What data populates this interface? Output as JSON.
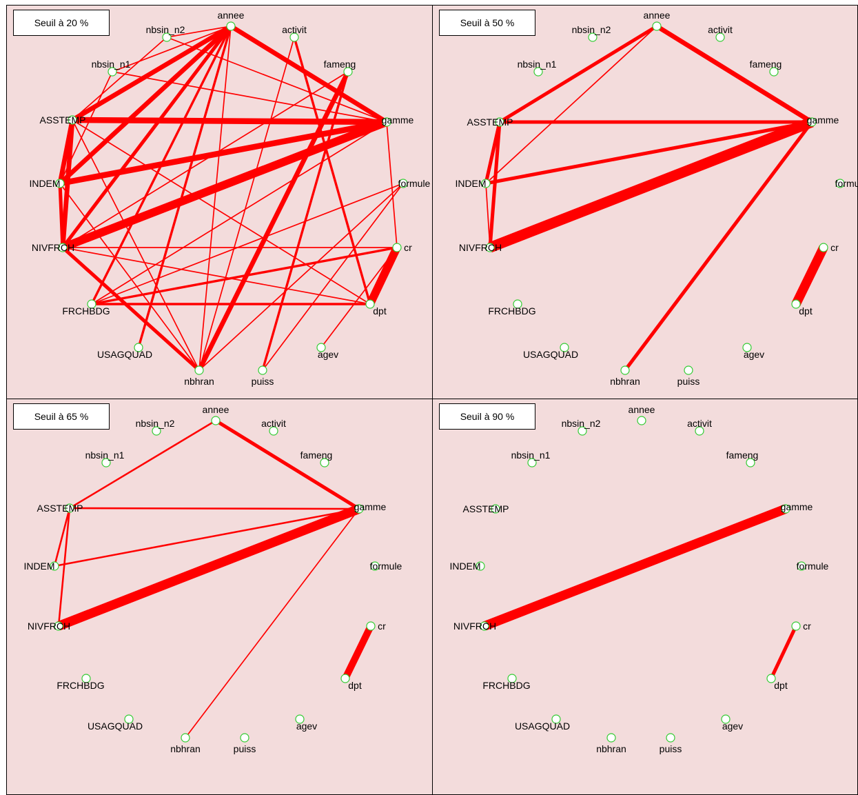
{
  "colors": {
    "background": "#f3dcdc",
    "edge": "#ff0000",
    "node_stroke": "#33cc33",
    "node_fill": "#ffffff",
    "label": "#000000"
  },
  "nodes": {
    "annee": "annee",
    "nbsin_n2": "nbsin_n2",
    "activit": "activit",
    "nbsin_n1": "nbsin_n1",
    "fameng": "fameng",
    "ASSTEMP": "ASSTEMP",
    "gamme": "gamme",
    "INDEM": "INDEM",
    "formule": "formule",
    "NIVFRCH": "NIVFRCH",
    "cr": "cr",
    "FRCHBDG": "FRCHBDG",
    "dpt": "dpt",
    "USAGQUAD": "USAGQUAD",
    "agev": "agev",
    "nbhran": "nbhran",
    "puiss": "puiss"
  },
  "panels": [
    {
      "label": "Seuil à 20 %",
      "edges": [
        {
          "source": "annee",
          "target": "gamme",
          "weight": 4
        },
        {
          "source": "annee",
          "target": "ASSTEMP",
          "weight": 4
        },
        {
          "source": "annee",
          "target": "INDEM",
          "weight": 4
        },
        {
          "source": "annee",
          "target": "NIVFRCH",
          "weight": 3
        },
        {
          "source": "annee",
          "target": "FRCHBDG",
          "weight": 2
        },
        {
          "source": "annee",
          "target": "USAGQUAD",
          "weight": 2
        },
        {
          "source": "annee",
          "target": "nbhran",
          "weight": 1
        },
        {
          "source": "annee",
          "target": "nbsin_n1",
          "weight": 1
        },
        {
          "source": "annee",
          "target": "nbsin_n2",
          "weight": 1
        },
        {
          "source": "ASSTEMP",
          "target": "gamme",
          "weight": 5
        },
        {
          "source": "INDEM",
          "target": "gamme",
          "weight": 5
        },
        {
          "source": "NIVFRCH",
          "target": "gamme",
          "weight": 7
        },
        {
          "source": "ASSTEMP",
          "target": "INDEM",
          "weight": 4
        },
        {
          "source": "ASSTEMP",
          "target": "NIVFRCH",
          "weight": 4
        },
        {
          "source": "INDEM",
          "target": "NIVFRCH",
          "weight": 3
        },
        {
          "source": "nbsin_n2",
          "target": "ASSTEMP",
          "weight": 1
        },
        {
          "source": "nbsin_n2",
          "target": "gamme",
          "weight": 1
        },
        {
          "source": "nbsin_n1",
          "target": "INDEM",
          "weight": 1
        },
        {
          "source": "nbsin_n1",
          "target": "gamme",
          "weight": 1
        },
        {
          "source": "activit",
          "target": "dpt",
          "weight": 2
        },
        {
          "source": "activit",
          "target": "nbhran",
          "weight": 1
        },
        {
          "source": "fameng",
          "target": "nbhran",
          "weight": 4
        },
        {
          "source": "fameng",
          "target": "puiss",
          "weight": 2
        },
        {
          "source": "fameng",
          "target": "NIVFRCH",
          "weight": 1
        },
        {
          "source": "gamme",
          "target": "FRCHBDG",
          "weight": 1
        },
        {
          "source": "gamme",
          "target": "cr",
          "weight": 1
        },
        {
          "source": "NIVFRCH",
          "target": "cr",
          "weight": 1
        },
        {
          "source": "NIVFRCH",
          "target": "dpt",
          "weight": 1
        },
        {
          "source": "NIVFRCH",
          "target": "nbhran",
          "weight": 3
        },
        {
          "source": "FRCHBDG",
          "target": "cr",
          "weight": 2
        },
        {
          "source": "FRCHBDG",
          "target": "dpt",
          "weight": 2
        },
        {
          "source": "cr",
          "target": "dpt",
          "weight": 7
        },
        {
          "source": "ASSTEMP",
          "target": "nbhran",
          "weight": 1
        },
        {
          "source": "INDEM",
          "target": "nbhran",
          "weight": 1
        },
        {
          "source": "formule",
          "target": "FRCHBDG",
          "weight": 1
        },
        {
          "source": "formule",
          "target": "puiss",
          "weight": 1
        },
        {
          "source": "formule",
          "target": "nbhran",
          "weight": 1
        },
        {
          "source": "cr",
          "target": "agev",
          "weight": 1
        },
        {
          "source": "ASSTEMP",
          "target": "dpt",
          "weight": 1
        }
      ]
    },
    {
      "label": "Seuil à 50 %",
      "edges": [
        {
          "source": "annee",
          "target": "gamme",
          "weight": 4
        },
        {
          "source": "annee",
          "target": "ASSTEMP",
          "weight": 3
        },
        {
          "source": "annee",
          "target": "INDEM",
          "weight": 1
        },
        {
          "source": "ASSTEMP",
          "target": "gamme",
          "weight": 3
        },
        {
          "source": "INDEM",
          "target": "gamme",
          "weight": 3
        },
        {
          "source": "NIVFRCH",
          "target": "gamme",
          "weight": 9
        },
        {
          "source": "ASSTEMP",
          "target": "INDEM",
          "weight": 3
        },
        {
          "source": "ASSTEMP",
          "target": "NIVFRCH",
          "weight": 3
        },
        {
          "source": "INDEM",
          "target": "NIVFRCH",
          "weight": 1
        },
        {
          "source": "gamme",
          "target": "nbhran",
          "weight": 3
        },
        {
          "source": "cr",
          "target": "dpt",
          "weight": 8
        }
      ]
    },
    {
      "label": "Seuil à 65 %",
      "edges": [
        {
          "source": "annee",
          "target": "gamme",
          "weight": 3
        },
        {
          "source": "annee",
          "target": "ASSTEMP",
          "weight": 1.5
        },
        {
          "source": "ASSTEMP",
          "target": "gamme",
          "weight": 1.5
        },
        {
          "source": "INDEM",
          "target": "gamme",
          "weight": 1.5
        },
        {
          "source": "NIVFRCH",
          "target": "gamme",
          "weight": 8
        },
        {
          "source": "ASSTEMP",
          "target": "INDEM",
          "weight": 1.5
        },
        {
          "source": "ASSTEMP",
          "target": "NIVFRCH",
          "weight": 1.5
        },
        {
          "source": "gamme",
          "target": "nbhran",
          "weight": 1
        },
        {
          "source": "cr",
          "target": "dpt",
          "weight": 6
        }
      ]
    },
    {
      "label": "Seuil à 90 %",
      "edges": [
        {
          "source": "NIVFRCH",
          "target": "gamme",
          "weight": 8
        },
        {
          "source": "cr",
          "target": "dpt",
          "weight": 3
        }
      ]
    }
  ]
}
